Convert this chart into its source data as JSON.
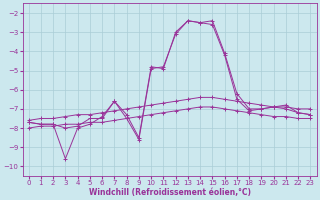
{
  "xlabel": "Windchill (Refroidissement éolien,°C)",
  "background_color": "#cce8ee",
  "grid_color": "#aacdd6",
  "line_color": "#993399",
  "xlim": [
    -0.5,
    23.5
  ],
  "ylim": [
    -10.5,
    -1.5
  ],
  "xticks": [
    0,
    1,
    2,
    3,
    4,
    5,
    6,
    7,
    8,
    9,
    10,
    11,
    12,
    13,
    14,
    15,
    16,
    17,
    18,
    19,
    20,
    21,
    22,
    23
  ],
  "yticks": [
    -2,
    -3,
    -4,
    -5,
    -6,
    -7,
    -8,
    -9,
    -10
  ],
  "line1_x": [
    0,
    1,
    2,
    3,
    4,
    5,
    6,
    7,
    8,
    9,
    10,
    11,
    12,
    13,
    14,
    15,
    16,
    17,
    18,
    19,
    20,
    21,
    22,
    23
  ],
  "line1_y": [
    -7.6,
    -7.5,
    -7.5,
    -7.4,
    -7.3,
    -7.3,
    -7.2,
    -7.1,
    -7.0,
    -6.9,
    -6.8,
    -6.7,
    -6.6,
    -6.5,
    -6.4,
    -6.4,
    -6.5,
    -6.6,
    -6.7,
    -6.8,
    -6.9,
    -6.9,
    -7.0,
    -7.0
  ],
  "line2_x": [
    0,
    1,
    2,
    3,
    4,
    5,
    6,
    7,
    8,
    9,
    10,
    11,
    12,
    13,
    14,
    15,
    16,
    17,
    18,
    19,
    20,
    21,
    22,
    23
  ],
  "line2_y": [
    -8.0,
    -7.9,
    -7.9,
    -7.8,
    -7.8,
    -7.7,
    -7.7,
    -7.6,
    -7.5,
    -7.4,
    -7.3,
    -7.2,
    -7.1,
    -7.0,
    -6.9,
    -6.9,
    -7.0,
    -7.1,
    -7.2,
    -7.3,
    -7.4,
    -7.4,
    -7.5,
    -7.5
  ],
  "line3_x": [
    0,
    1,
    2,
    3,
    4,
    5,
    6,
    7,
    8,
    9,
    10,
    11,
    12,
    13,
    14,
    15,
    16,
    17,
    18,
    19,
    20,
    21,
    22,
    23
  ],
  "line3_y": [
    -7.7,
    -7.8,
    -7.8,
    -8.0,
    -7.9,
    -7.5,
    -7.5,
    -6.6,
    -7.5,
    -8.6,
    -4.9,
    -4.8,
    -3.1,
    -2.4,
    -2.5,
    -2.4,
    -4.1,
    -6.2,
    -7.0,
    -7.0,
    -6.9,
    -6.8,
    -7.2,
    -7.3
  ],
  "line4_x": [
    0,
    1,
    2,
    3,
    4,
    5,
    6,
    7,
    8,
    9,
    10,
    11,
    12,
    13,
    14,
    15,
    16,
    17,
    18,
    19,
    20,
    21,
    22,
    23
  ],
  "line4_y": [
    -7.7,
    -7.8,
    -7.8,
    -9.6,
    -8.0,
    -7.8,
    -7.4,
    -6.6,
    -7.3,
    -8.5,
    -4.8,
    -4.9,
    -3.0,
    -2.4,
    -2.5,
    -2.6,
    -4.2,
    -6.5,
    -7.1,
    -7.0,
    -6.9,
    -7.0,
    -7.2,
    -7.3
  ]
}
